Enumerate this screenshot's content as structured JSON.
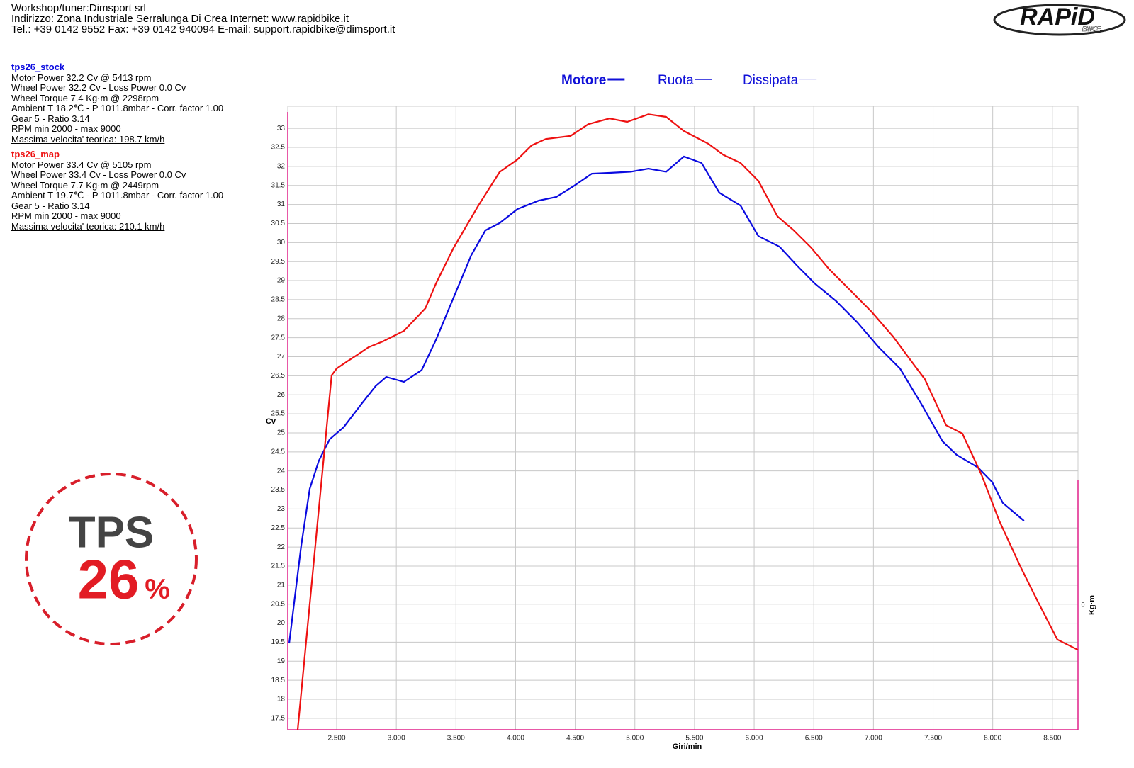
{
  "header": {
    "lines": [
      "Workshop/tuner:Dimsport srl",
      "Indirizzo: Zona Industriale Serralunga Di Crea Internet: www.rapidbike.it",
      "Tel.: +39 0142 9552 Fax: +39 0142 940094 E-mail: support.rapidbike@dimsport.it"
    ]
  },
  "logo": {
    "text": "RAPiD",
    "sub": "BIKE"
  },
  "runs": [
    {
      "lines": [
        "Motor Power 32.2 Cv  @ 5413 rpm",
        "Wheel Power 32.2 Cv  - Loss Power 0.0 Cv",
        "Wheel Torque 7.4 Kg·m  @ 2298rpm",
        "Ambient T 18.2℃ - P 1011.8mbar - Corr. factor 1.00",
        "Gear 5 - Ratio 3.14",
        "RPM min 2000 - max 9000"
      ],
      "speed": "Massima velocita' teorica: 198.7 km/h"
    },
    {
      "lines": [
        "Motor Power 33.4 Cv  @ 5105 rpm",
        "Wheel Power 33.4 Cv  - Loss Power 0.0 Cv",
        "Wheel Torque 7.7 Kg·m  @ 2449rpm",
        "Ambient T 19.7℃ - P 1011.8mbar - Corr. factor 1.00",
        "Gear 5 - Ratio 3.14",
        "RPM min 2000 - max 9000"
      ],
      "speed": "Massima velocita' teorica: 210.1 km/h"
    }
  ],
  "badge": {
    "title": "TPS",
    "value": "26",
    "unit": "%"
  },
  "chart_data": {
    "type": "line",
    "legend_items": [
      "Motore",
      "Ruota",
      "Dissipata"
    ],
    "xlabel": "Giri/min",
    "ylabel": "Cv",
    "y2label": "Kg·m",
    "xlim": [
      2090,
      8715
    ],
    "ylim": [
      17.2,
      33.58
    ],
    "y2lim": [
      -2,
      8
    ],
    "xticks": [
      {
        "value": 2500,
        "label": "2.500"
      },
      {
        "value": 3000,
        "label": "3.000"
      },
      {
        "value": 3500,
        "label": "3.500"
      },
      {
        "value": 4000,
        "label": "4.000"
      },
      {
        "value": 4500,
        "label": "4.500"
      },
      {
        "value": 5000,
        "label": "5.000"
      },
      {
        "value": 5500,
        "label": "5.500"
      },
      {
        "value": 6000,
        "label": "6.000"
      },
      {
        "value": 6500,
        "label": "6.500"
      },
      {
        "value": 7000,
        "label": "7.000"
      },
      {
        "value": 7500,
        "label": "7.500"
      },
      {
        "value": 8000,
        "label": "8.000"
      },
      {
        "value": 8500,
        "label": "8.500"
      }
    ],
    "yticks": [
      17.5,
      18,
      18.5,
      19,
      19.5,
      20,
      20.5,
      21,
      21.5,
      22,
      22.5,
      23,
      23.5,
      24,
      24.5,
      25,
      25.5,
      26,
      26.5,
      27,
      27.5,
      28,
      28.5,
      29,
      29.5,
      30,
      30.5,
      31,
      31.5,
      32,
      32.5,
      33
    ],
    "y2ticks": [
      0
    ],
    "grid": true,
    "series": [
      {
        "name": "tps26_stock",
        "color": "#0a0ae0",
        "x": [
          2102,
          2144,
          2203,
          2274,
          2351,
          2441,
          2559,
          2708,
          2827,
          2916,
          3064,
          3213,
          3332,
          3480,
          3629,
          3747,
          3866,
          4015,
          4193,
          4342,
          4490,
          4639,
          4787,
          4965,
          5114,
          5262,
          5411,
          5559,
          5708,
          5886,
          6035,
          6213,
          6361,
          6510,
          6688,
          6866,
          7044,
          7223,
          7401,
          7579,
          7698,
          7876,
          7995,
          8084,
          8262
        ],
        "values": [
          19.47,
          20.55,
          22.04,
          23.53,
          24.27,
          24.83,
          25.15,
          25.76,
          26.23,
          26.47,
          26.34,
          26.65,
          27.44,
          28.55,
          29.67,
          30.32,
          30.51,
          30.88,
          31.1,
          31.2,
          31.49,
          31.81,
          31.83,
          31.86,
          31.94,
          31.86,
          32.26,
          32.09,
          31.31,
          30.97,
          30.17,
          29.89,
          29.39,
          28.92,
          28.46,
          27.9,
          27.25,
          26.69,
          25.76,
          24.78,
          24.42,
          24.09,
          23.71,
          23.16,
          22.69
        ]
      },
      {
        "name": "tps26_map",
        "color": "#ee1111",
        "x": [
          2173,
          2458,
          2500,
          2589,
          2678,
          2767,
          2886,
          3064,
          3243,
          3332,
          3480,
          3688,
          3866,
          4015,
          4134,
          4253,
          4460,
          4609,
          4787,
          4936,
          5114,
          5262,
          5411,
          5619,
          5738,
          5886,
          6035,
          6195,
          6332,
          6480,
          6629,
          6807,
          6985,
          7164,
          7342,
          7431,
          7609,
          7746,
          7906,
          8055,
          8233,
          8381,
          8542,
          8714
        ],
        "values": [
          17.2,
          26.51,
          26.69,
          26.88,
          27.06,
          27.25,
          27.4,
          27.68,
          28.27,
          28.92,
          29.86,
          30.97,
          31.85,
          32.18,
          32.55,
          32.72,
          32.8,
          33.11,
          33.26,
          33.17,
          33.37,
          33.3,
          32.93,
          32.59,
          32.31,
          32.09,
          31.62,
          30.69,
          30.32,
          29.86,
          29.3,
          28.74,
          28.18,
          27.53,
          26.78,
          26.41,
          25.2,
          24.98,
          23.9,
          22.69,
          21.48,
          20.55,
          19.57,
          19.3
        ]
      }
    ]
  }
}
